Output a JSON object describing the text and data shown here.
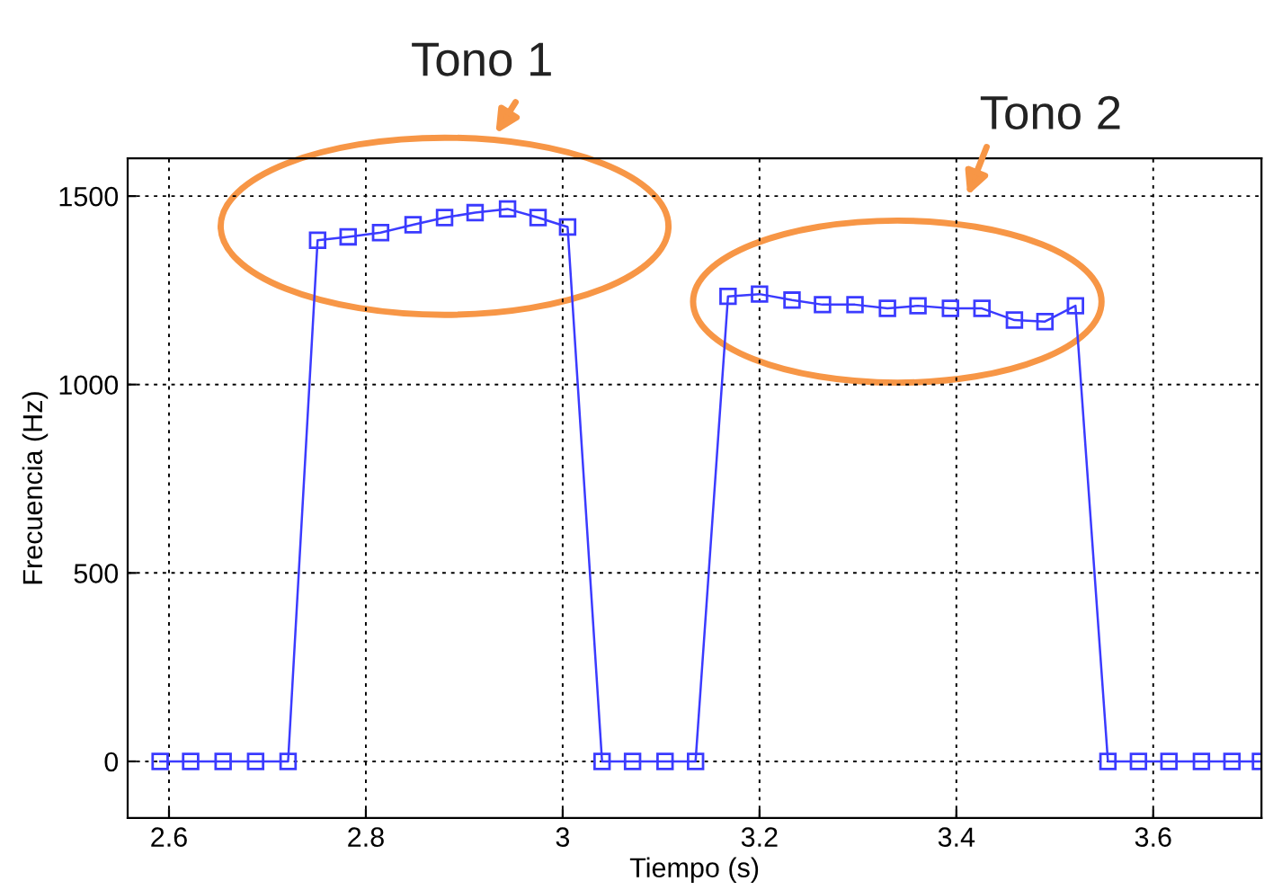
{
  "chart_data": {
    "type": "line",
    "xlabel": "Tiempo (s)",
    "ylabel": "Frecuencia (Hz)",
    "x": [
      2.591,
      2.622,
      2.655,
      2.688,
      2.721,
      2.751,
      2.782,
      2.815,
      2.848,
      2.88,
      2.911,
      2.944,
      2.975,
      3.005,
      3.04,
      3.071,
      3.104,
      3.135,
      3.168,
      3.2,
      3.233,
      3.264,
      3.297,
      3.33,
      3.361,
      3.394,
      3.426,
      3.459,
      3.49,
      3.521,
      3.554,
      3.585,
      3.616,
      3.649,
      3.68,
      3.709
    ],
    "series": [
      {
        "color": "#3b3bff",
        "values": [
          0,
          0,
          0,
          0,
          0,
          1383,
          1392,
          1403,
          1424,
          1443,
          1456,
          1466,
          1443,
          1418,
          0,
          0,
          0,
          0,
          1234,
          1240,
          1224,
          1212,
          1212,
          1202,
          1209,
          1202,
          1202,
          1171,
          1167,
          1209,
          0,
          0,
          0,
          0,
          0,
          0
        ]
      }
    ],
    "xlim": [
      2.558,
      3.71
    ],
    "ylim": [
      -150,
      1600
    ],
    "xticks": [
      {
        "value": 2.6,
        "label": "2.6"
      },
      {
        "value": 2.8,
        "label": "2.8"
      },
      {
        "value": 3.0,
        "label": "3"
      },
      {
        "value": 3.2,
        "label": "3.2"
      },
      {
        "value": 3.4,
        "label": "3.4"
      },
      {
        "value": 3.6,
        "label": "3.6"
      }
    ],
    "yticks": [
      0,
      500,
      1000,
      1500
    ],
    "grid": true,
    "marker": "square",
    "line_style": "solid",
    "legend": false,
    "annotations": [
      "Tono 1",
      "Tono 2"
    ]
  }
}
